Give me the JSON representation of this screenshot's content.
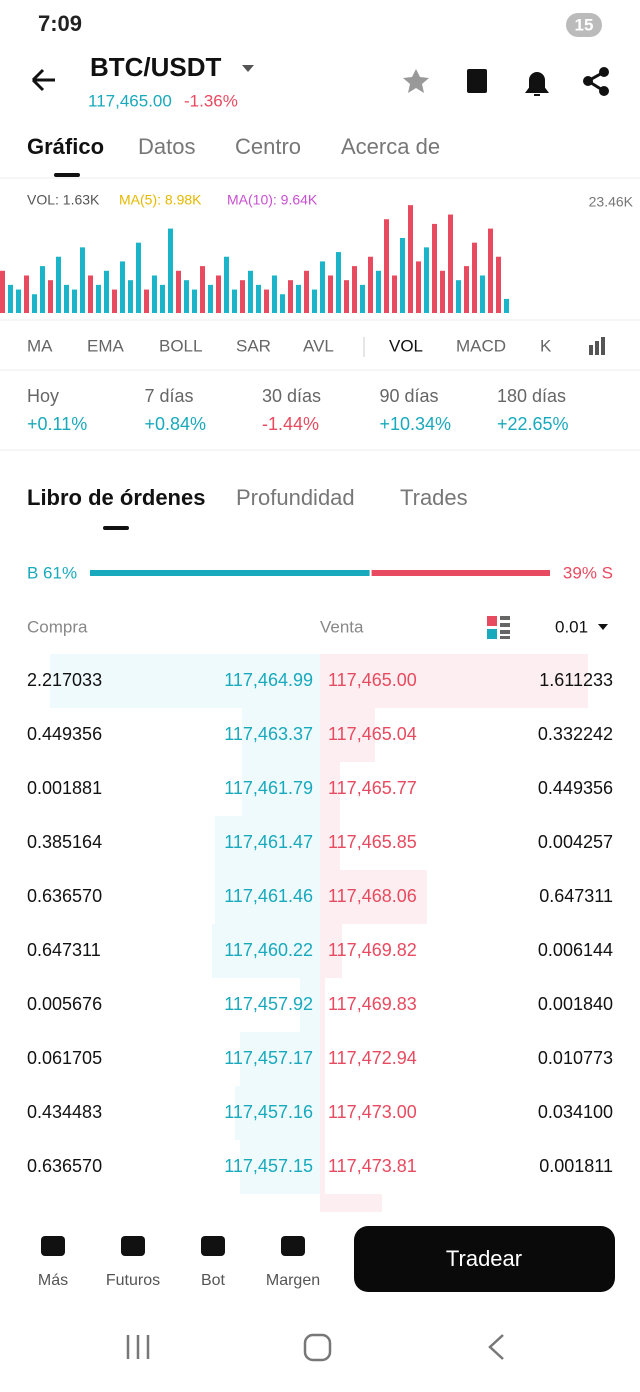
{
  "status_bar": {
    "time": "7:09",
    "battery": "15"
  },
  "header": {
    "pair": "BTC/USDT",
    "price": "117,465.00",
    "change": "-1.36%"
  },
  "tabs": [
    "Gráfico",
    "Datos",
    "Centro",
    "Acerca de"
  ],
  "volume_chart": {
    "vol": "VOL: 1.63K",
    "ma5": "MA(5): 8.98K",
    "ma10": "MA(10): 9.64K",
    "max_label": "23.46K",
    "max": 23.46,
    "values": [
      9,
      6,
      5,
      8,
      4,
      10,
      7,
      12,
      6,
      5,
      14,
      8,
      6,
      9,
      5,
      11,
      7,
      15,
      5,
      8,
      6,
      18,
      9,
      7,
      5,
      10,
      6,
      8,
      12,
      5,
      7,
      9,
      6,
      5,
      8,
      4,
      7,
      6,
      9,
      5,
      11,
      8,
      13,
      7,
      10,
      6,
      12,
      9,
      20,
      8,
      16,
      23,
      11,
      14,
      19,
      9,
      21,
      7,
      10,
      15,
      8,
      18,
      12,
      3
    ],
    "colors": [
      "#e84a5f",
      "#1bb5c9",
      "#1bb5c9",
      "#e84a5f",
      "#1bb5c9",
      "#1bb5c9",
      "#e84a5f",
      "#1bb5c9",
      "#1bb5c9",
      "#1bb5c9",
      "#1bb5c9",
      "#e84a5f",
      "#1bb5c9",
      "#1bb5c9",
      "#e84a5f",
      "#1bb5c9",
      "#1bb5c9",
      "#1bb5c9",
      "#e84a5f",
      "#1bb5c9",
      "#1bb5c9",
      "#1bb5c9",
      "#e84a5f",
      "#1bb5c9",
      "#1bb5c9",
      "#e84a5f",
      "#1bb5c9",
      "#e84a5f",
      "#1bb5c9",
      "#1bb5c9",
      "#e84a5f",
      "#1bb5c9",
      "#1bb5c9",
      "#e84a5f",
      "#1bb5c9",
      "#1bb5c9",
      "#e84a5f",
      "#1bb5c9",
      "#e84a5f",
      "#1bb5c9",
      "#1bb5c9",
      "#e84a5f",
      "#1bb5c9",
      "#e84a5f",
      "#e84a5f",
      "#1bb5c9",
      "#e84a5f",
      "#1bb5c9",
      "#e84a5f",
      "#e84a5f",
      "#1bb5c9",
      "#e84a5f",
      "#e84a5f",
      "#1bb5c9",
      "#e84a5f",
      "#e84a5f",
      "#e84a5f",
      "#1bb5c9",
      "#e84a5f",
      "#e84a5f",
      "#1bb5c9",
      "#e84a5f",
      "#e84a5f",
      "#1bb5c9"
    ]
  },
  "indicators": [
    "MA",
    "EMA",
    "BOLL",
    "SAR",
    "AVL",
    "VOL",
    "MACD",
    "K"
  ],
  "performance": [
    {
      "label": "Hoy",
      "value": "+0.11%"
    },
    {
      "label": "7 días",
      "value": "+0.84%"
    },
    {
      "label": "30 días",
      "value": "-1.44%"
    },
    {
      "label": "90 días",
      "value": "+10.34%"
    },
    {
      "label": "180 días",
      "value": "+22.65%"
    }
  ],
  "book_tabs": [
    "Libro de órdenes",
    "Profundidad",
    "Trades"
  ],
  "ratio": {
    "buy": {
      "value": 61,
      "label": "B 61%"
    },
    "sell": {
      "value": 39,
      "label": "39% S"
    }
  },
  "book_header": {
    "buy": "Compra",
    "sell": "Venta",
    "precision": "0.01"
  },
  "rows": [
    [
      "2.217033",
      "117,464.99",
      "117,465.00",
      "1.611233"
    ],
    [
      "0.449356",
      "117,463.37",
      "117,465.04",
      "0.332242"
    ],
    [
      "0.001881",
      "117,461.79",
      "117,465.77",
      "0.449356"
    ],
    [
      "0.385164",
      "117,461.47",
      "117,465.85",
      "0.004257"
    ],
    [
      "0.636570",
      "117,461.46",
      "117,468.06",
      "0.647311"
    ],
    [
      "0.647311",
      "117,460.22",
      "117,469.82",
      "0.006144"
    ],
    [
      "0.005676",
      "117,457.92",
      "117,469.83",
      "0.001840"
    ],
    [
      "0.061705",
      "117,457.17",
      "117,472.94",
      "0.010773"
    ],
    [
      "0.434483",
      "117,457.16",
      "117,473.00",
      "0.034100"
    ],
    [
      "0.636570",
      "117,457.15",
      "117,473.81",
      "0.001811"
    ]
  ],
  "bottom_nav": [
    "Más",
    "Futuros",
    "Bot",
    "Margen"
  ],
  "trade_button": "Tradear"
}
